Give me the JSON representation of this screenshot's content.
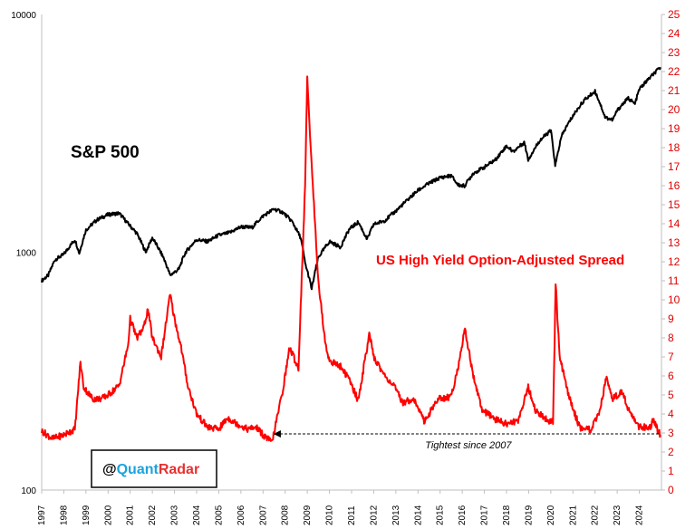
{
  "chart_data": {
    "type": "line",
    "x_range": [
      1997,
      2025
    ],
    "x_ticks": [
      "1997",
      "1998",
      "1999",
      "2000",
      "2001",
      "2002",
      "2003",
      "2004",
      "2005",
      "2006",
      "2007",
      "2008",
      "2009",
      "2010",
      "2011",
      "2012",
      "2013",
      "2014",
      "2015",
      "2016",
      "2017",
      "2018",
      "2019",
      "2020",
      "2021",
      "2022",
      "2023",
      "2024"
    ],
    "y_left": {
      "scale": "log",
      "range": [
        100,
        10000
      ],
      "ticks": [
        "100",
        "1000",
        "10000"
      ]
    },
    "y_right": {
      "scale": "linear",
      "range": [
        0,
        25
      ],
      "ticks": [
        "0",
        "1",
        "2",
        "3",
        "4",
        "5",
        "6",
        "7",
        "8",
        "9",
        "10",
        "11",
        "12",
        "13",
        "14",
        "15",
        "16",
        "17",
        "18",
        "19",
        "20",
        "21",
        "22",
        "23",
        "24",
        "25"
      ]
    },
    "grid": false,
    "series": [
      {
        "name": "S&P 500",
        "axis": "left",
        "color": "#000000",
        "points": [
          [
            1997.0,
            760
          ],
          [
            1997.3,
            800
          ],
          [
            1997.6,
            930
          ],
          [
            1998.0,
            980
          ],
          [
            1998.5,
            1130
          ],
          [
            1998.7,
            990
          ],
          [
            1999.0,
            1240
          ],
          [
            1999.5,
            1370
          ],
          [
            2000.0,
            1440
          ],
          [
            2000.5,
            1460
          ],
          [
            2000.9,
            1320
          ],
          [
            2001.3,
            1200
          ],
          [
            2001.7,
            1000
          ],
          [
            2002.0,
            1150
          ],
          [
            2002.5,
            950
          ],
          [
            2002.8,
            800
          ],
          [
            2003.2,
            850
          ],
          [
            2003.5,
            1000
          ],
          [
            2004.0,
            1130
          ],
          [
            2004.5,
            1110
          ],
          [
            2005.0,
            1180
          ],
          [
            2005.5,
            1210
          ],
          [
            2006.0,
            1280
          ],
          [
            2006.5,
            1270
          ],
          [
            2007.0,
            1420
          ],
          [
            2007.5,
            1520
          ],
          [
            2007.9,
            1470
          ],
          [
            2008.3,
            1350
          ],
          [
            2008.7,
            1150
          ],
          [
            2008.9,
            900
          ],
          [
            2009.2,
            700
          ],
          [
            2009.5,
            950
          ],
          [
            2010.0,
            1110
          ],
          [
            2010.5,
            1050
          ],
          [
            2010.9,
            1250
          ],
          [
            2011.3,
            1340
          ],
          [
            2011.7,
            1130
          ],
          [
            2012.0,
            1310
          ],
          [
            2012.5,
            1360
          ],
          [
            2013.0,
            1490
          ],
          [
            2013.5,
            1650
          ],
          [
            2014.0,
            1820
          ],
          [
            2014.5,
            1950
          ],
          [
            2015.0,
            2060
          ],
          [
            2015.5,
            2100
          ],
          [
            2015.8,
            1920
          ],
          [
            2016.1,
            1900
          ],
          [
            2016.5,
            2150
          ],
          [
            2017.0,
            2280
          ],
          [
            2017.5,
            2450
          ],
          [
            2018.0,
            2800
          ],
          [
            2018.3,
            2650
          ],
          [
            2018.8,
            2900
          ],
          [
            2018.98,
            2450
          ],
          [
            2019.5,
            2950
          ],
          [
            2020.0,
            3250
          ],
          [
            2020.2,
            2300
          ],
          [
            2020.5,
            3100
          ],
          [
            2021.0,
            3750
          ],
          [
            2021.5,
            4350
          ],
          [
            2022.0,
            4750
          ],
          [
            2022.45,
            3700
          ],
          [
            2022.8,
            3600
          ],
          [
            2023.0,
            3950
          ],
          [
            2023.5,
            4450
          ],
          [
            2023.8,
            4200
          ],
          [
            2024.0,
            4850
          ],
          [
            2024.5,
            5450
          ],
          [
            2024.8,
            5800
          ],
          [
            2024.95,
            6000
          ]
        ]
      },
      {
        "name": "US High Yield Option-Adjusted Spread",
        "axis": "right",
        "color": "#ff0000",
        "points": [
          [
            1997.0,
            3.1
          ],
          [
            1997.5,
            2.7
          ],
          [
            1998.0,
            2.9
          ],
          [
            1998.5,
            3.2
          ],
          [
            1998.75,
            6.7
          ],
          [
            1998.9,
            5.4
          ],
          [
            1999.3,
            4.8
          ],
          [
            1999.7,
            4.8
          ],
          [
            2000.0,
            5.0
          ],
          [
            2000.5,
            5.5
          ],
          [
            2000.9,
            7.6
          ],
          [
            2001.0,
            9.0
          ],
          [
            2001.3,
            8.0
          ],
          [
            2001.6,
            8.5
          ],
          [
            2001.8,
            9.5
          ],
          [
            2002.0,
            8.0
          ],
          [
            2002.4,
            7.0
          ],
          [
            2002.8,
            10.3
          ],
          [
            2003.0,
            9.0
          ],
          [
            2003.3,
            7.5
          ],
          [
            2003.6,
            5.5
          ],
          [
            2004.0,
            4.0
          ],
          [
            2004.5,
            3.3
          ],
          [
            2005.0,
            3.2
          ],
          [
            2005.4,
            3.8
          ],
          [
            2005.8,
            3.5
          ],
          [
            2006.3,
            3.2
          ],
          [
            2006.7,
            3.3
          ],
          [
            2007.0,
            2.9
          ],
          [
            2007.4,
            2.5
          ],
          [
            2007.6,
            3.6
          ],
          [
            2007.9,
            5.3
          ],
          [
            2008.2,
            7.5
          ],
          [
            2008.6,
            6.4
          ],
          [
            2008.9,
            16.0
          ],
          [
            2009.0,
            21.6
          ],
          [
            2009.2,
            17.0
          ],
          [
            2009.5,
            11.0
          ],
          [
            2009.8,
            7.8
          ],
          [
            2010.0,
            6.8
          ],
          [
            2010.5,
            6.5
          ],
          [
            2010.9,
            5.8
          ],
          [
            2011.3,
            4.7
          ],
          [
            2011.8,
            8.2
          ],
          [
            2012.0,
            7.0
          ],
          [
            2012.5,
            6.0
          ],
          [
            2012.9,
            5.5
          ],
          [
            2013.3,
            4.6
          ],
          [
            2013.8,
            4.8
          ],
          [
            2014.3,
            3.6
          ],
          [
            2014.9,
            4.8
          ],
          [
            2015.5,
            4.9
          ],
          [
            2016.0,
            7.5
          ],
          [
            2016.1,
            8.6
          ],
          [
            2016.5,
            6.0
          ],
          [
            2016.9,
            4.2
          ],
          [
            2017.5,
            3.7
          ],
          [
            2018.0,
            3.5
          ],
          [
            2018.5,
            3.6
          ],
          [
            2018.98,
            5.4
          ],
          [
            2019.3,
            4.2
          ],
          [
            2019.8,
            3.7
          ],
          [
            2020.1,
            3.6
          ],
          [
            2020.22,
            10.8
          ],
          [
            2020.4,
            7.0
          ],
          [
            2020.8,
            5.0
          ],
          [
            2021.3,
            3.3
          ],
          [
            2021.8,
            3.2
          ],
          [
            2022.2,
            4.0
          ],
          [
            2022.5,
            5.9
          ],
          [
            2022.8,
            4.8
          ],
          [
            2023.2,
            5.2
          ],
          [
            2023.6,
            4.0
          ],
          [
            2024.0,
            3.3
          ],
          [
            2024.5,
            3.3
          ],
          [
            2024.6,
            3.7
          ],
          [
            2024.95,
            2.9
          ]
        ]
      }
    ],
    "labels": {
      "sp500": "S&P 500",
      "hy_spread": "US High Yield Option-Adjusted Spread"
    },
    "annotation": {
      "text": "Tightest since 2007",
      "from_x": 2007.6,
      "to_x": 2024.95,
      "y_value": 2.95
    },
    "watermark": {
      "at": "@",
      "quant": "Quant",
      "radar": "Radar"
    },
    "colors": {
      "sp500": "#000000",
      "hy_spread": "#ff0000",
      "right_axis": "#e00000",
      "quant": "#1aa3e0",
      "radar": "#e83030"
    }
  }
}
